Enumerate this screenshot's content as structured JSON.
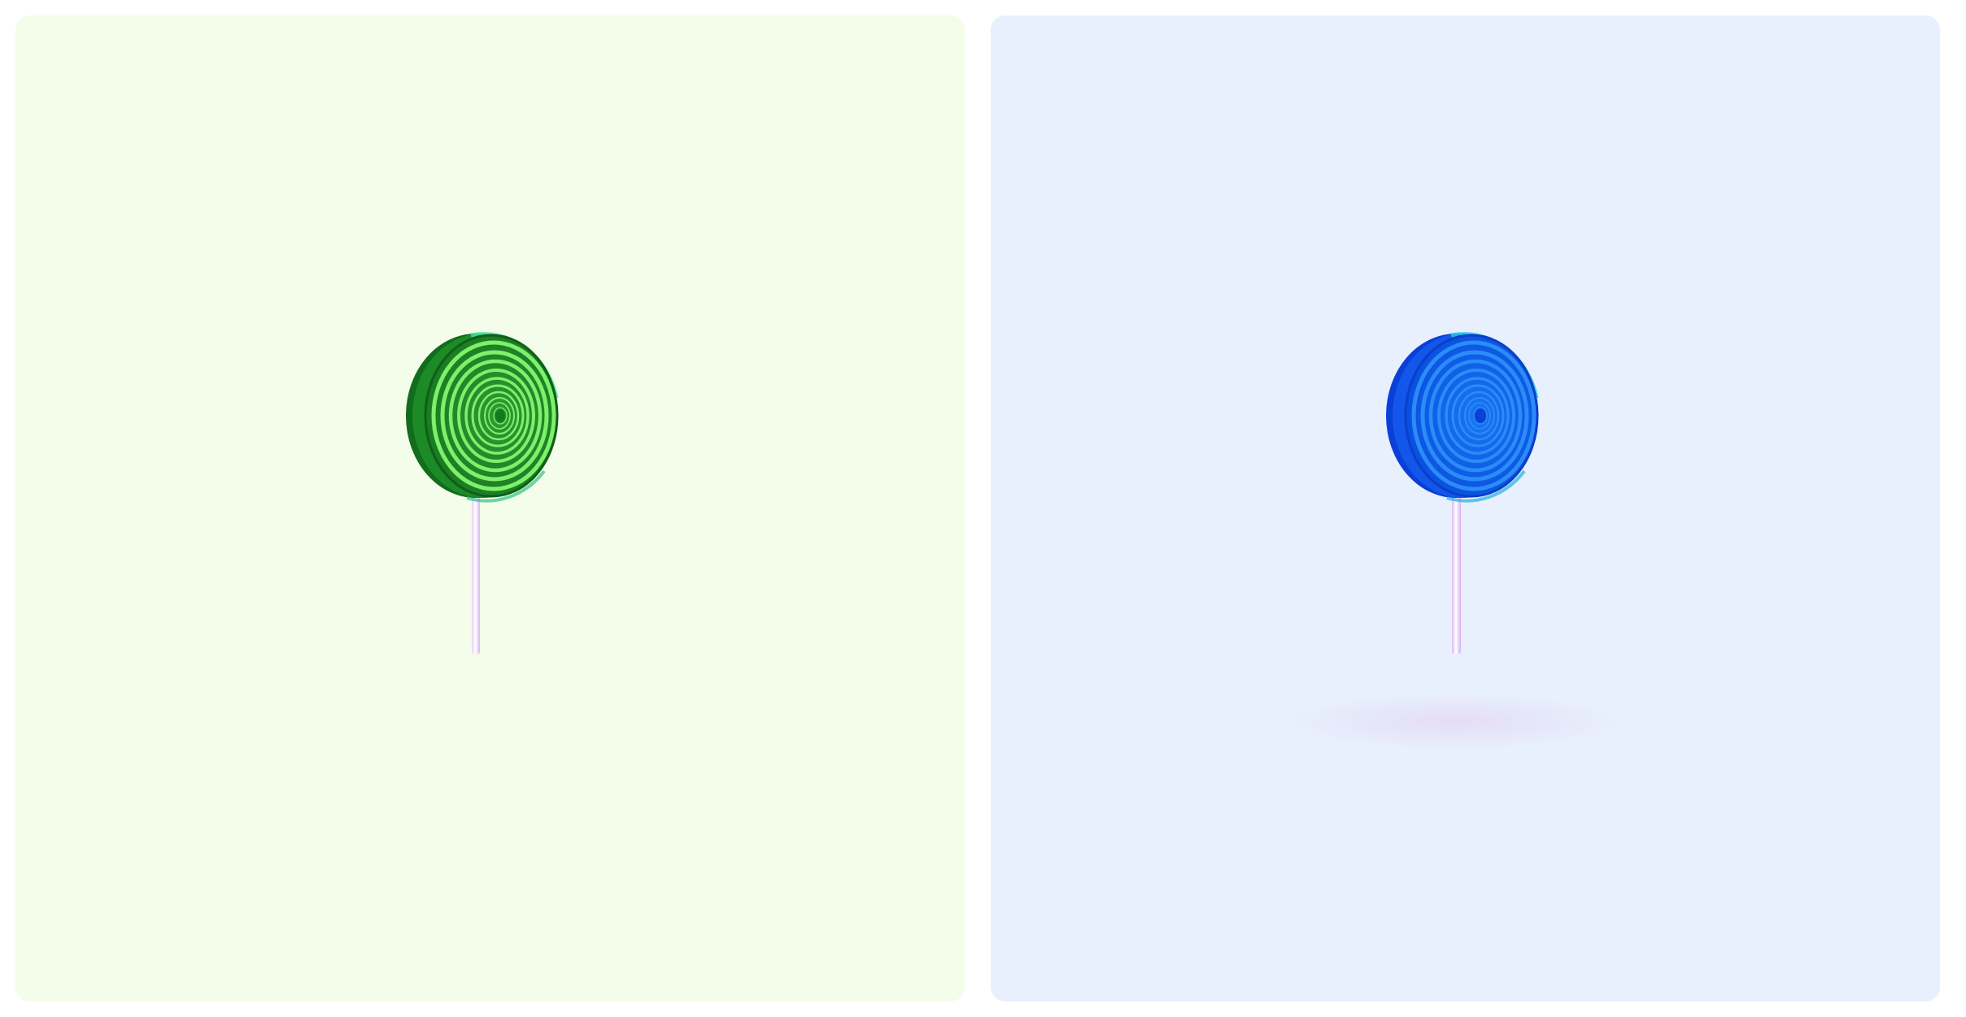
{
  "panels": [
    {
      "id": "green",
      "background": "#f3fde9",
      "candy": {
        "rim_dark": "#0f6f1b",
        "rim_mid": "#1e8c2a",
        "face_base": "#2fa43b",
        "ring_light": "#7ef06a",
        "ring_dark": "#166d1f",
        "center": "#137a1f",
        "edge_highlight": "#3fe0a0"
      },
      "stick": {
        "color": "#f2e6fb",
        "shade": "#d9b6ef"
      },
      "shadow": "#f0e6f8"
    },
    {
      "id": "blue",
      "background": "#e8f0fd",
      "candy": {
        "rim_dark": "#0a3fd6",
        "rim_mid": "#1255e8",
        "face_base": "#0b58e6",
        "ring_light": "#2b8cf7",
        "ring_dark": "#0a49d9",
        "center": "#0a3fd8",
        "edge_highlight": "#22c7e6"
      },
      "stick": {
        "color": "#f2e6fb",
        "shade": "#d9b6ef"
      },
      "shadow": "#e6ddf6"
    }
  ]
}
